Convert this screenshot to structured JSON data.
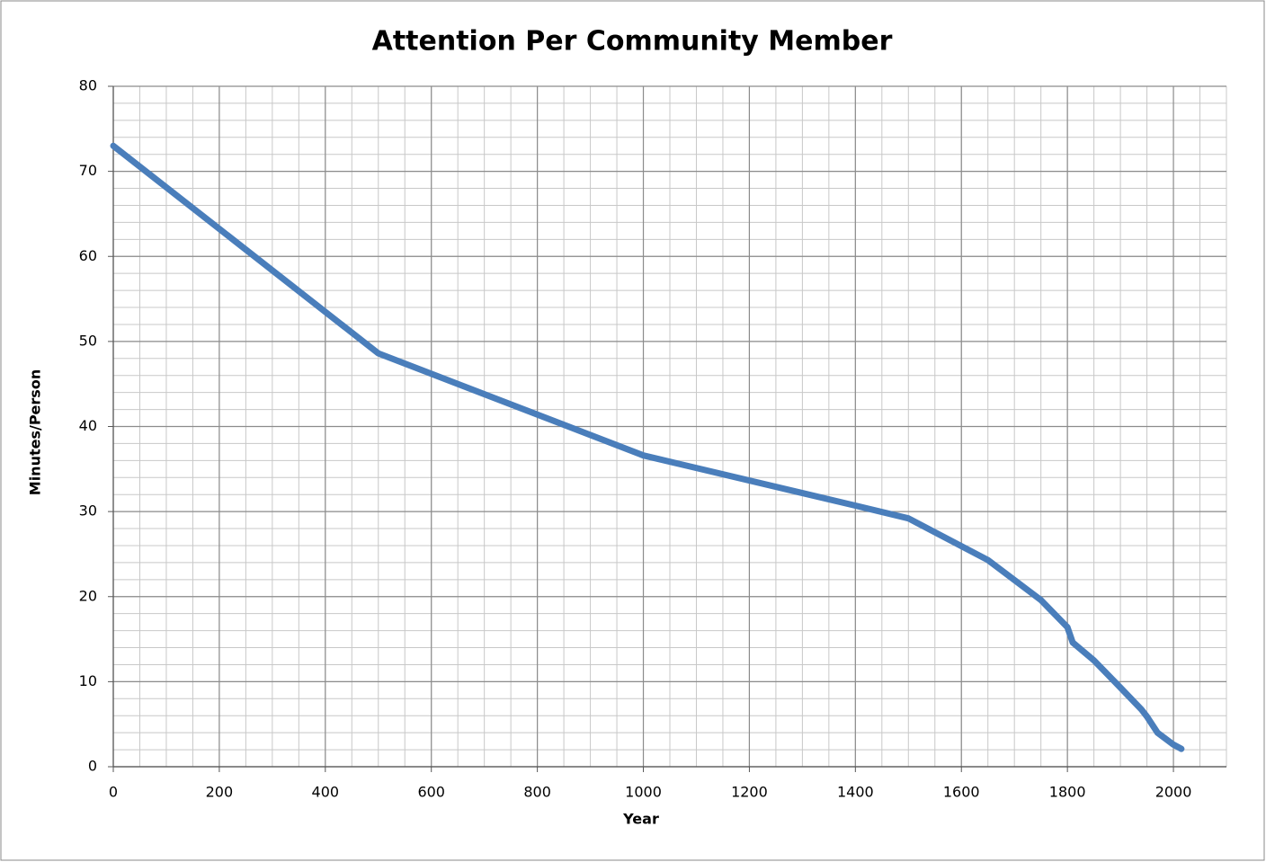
{
  "chart_data": {
    "type": "line",
    "title": "Attention Per Community Member",
    "x_label": "Year",
    "y_label": "Minutes/Person",
    "x": [
      0,
      500,
      1000,
      1400,
      1500,
      1650,
      1750,
      1800,
      1810,
      1850,
      1900,
      1940,
      1950,
      1970,
      2000,
      2015
    ],
    "series": [
      {
        "name": "Minutes/Person",
        "color": "#4a7ebb",
        "values": [
          73,
          48.6,
          36.6,
          30.7,
          29.2,
          24.3,
          19.6,
          16.4,
          14.6,
          12.5,
          9.3,
          6.7,
          5.9,
          4.0,
          2.6,
          2.1
        ]
      }
    ],
    "xlim": [
      0,
      2100
    ],
    "xticks": [
      0,
      200,
      400,
      600,
      800,
      1000,
      1200,
      1400,
      1600,
      1800,
      2000
    ],
    "ylim": [
      0,
      80
    ],
    "yticks": [
      0,
      10,
      20,
      30,
      40,
      50,
      60,
      70,
      80
    ],
    "grid": true,
    "minor_grid": {
      "x": 50,
      "y": 2
    }
  }
}
